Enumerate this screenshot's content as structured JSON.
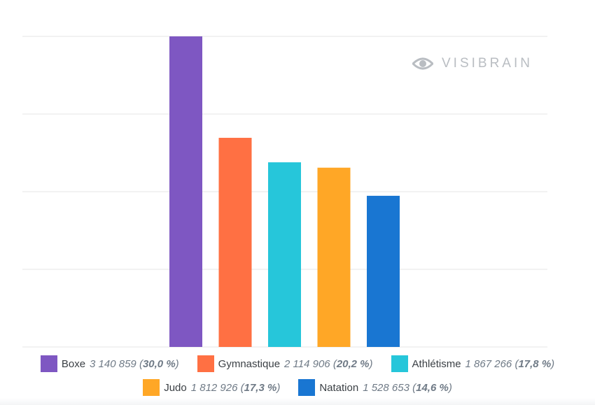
{
  "watermark": {
    "text": "VISIBRAIN",
    "icon": "eye-icon"
  },
  "chart_data": {
    "type": "bar",
    "categories": [
      "Boxe",
      "Gymnastique",
      "Athlétisme",
      "Judo",
      "Natation"
    ],
    "values": [
      3140859,
      2114906,
      1867266,
      1812926,
      1528653
    ],
    "value_labels": [
      "3 140 859",
      "2 114 906",
      "1 867 266",
      "1 812 926",
      "1 528 653"
    ],
    "percent_labels": [
      "30,0 %",
      "20,2 %",
      "17,8 %",
      "17,3 %",
      "14,6 %"
    ],
    "colors": [
      "#7e57c2",
      "#ff7043",
      "#26c6da",
      "#ffa726",
      "#1976d2"
    ],
    "ylim": [
      0,
      3140859
    ],
    "grid": true,
    "legend_position": "bottom",
    "title": "",
    "xlabel": "",
    "ylabel": ""
  }
}
